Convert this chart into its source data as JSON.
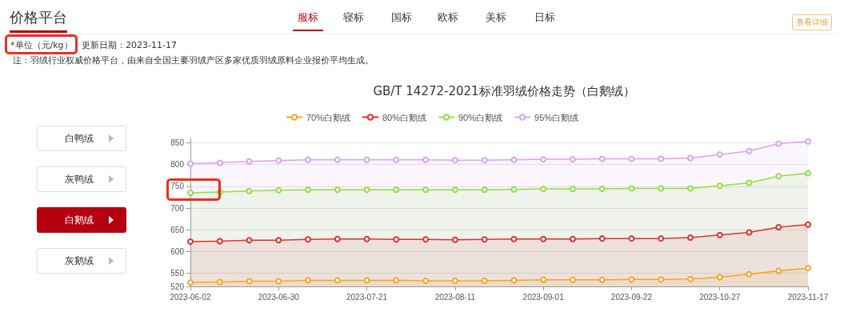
{
  "chart_data": {
    "type": "area",
    "title": "GB/T 14272-2021标准羽绒价格走势（白鹅绒）",
    "annotations": [
      "价格平台",
      "服标",
      "寝标",
      "国标",
      "欧标",
      "美标",
      "日标",
      "查看详细",
      "*单位（元/kg）",
      "更新日期：2023-11-17",
      "注：羽绒行业权威价格平台，由来自全国主要羽绒产区多家优质羽绒原料企业报价平均生成。",
      "白鸭绒",
      "灰鸭绒",
      "白鹅绒",
      "灰鹅绒"
    ],
    "categories": [
      "2023-06-02",
      null,
      null,
      "2023-06-30",
      null,
      null,
      "2023-07-21",
      null,
      null,
      "2023-08-11",
      null,
      null,
      "2023-09-01",
      null,
      null,
      "2023-09-22",
      null,
      null,
      "2023-10-27",
      null,
      null,
      "2023-11-17"
    ],
    "series": [
      {
        "name": "70%白鹅绒",
        "color": "#f5a623",
        "values": [
          529,
          530,
          532,
          532,
          534,
          534,
          534,
          534,
          533,
          533,
          533,
          534,
          535,
          535,
          535,
          536,
          536,
          537,
          541,
          548,
          556,
          562
        ]
      },
      {
        "name": "80%白鹅绒",
        "color": "#e0312d",
        "values": [
          623,
          624,
          626,
          626,
          628,
          629,
          629,
          628,
          628,
          627,
          628,
          629,
          629,
          629,
          630,
          630,
          630,
          632,
          638,
          644,
          656,
          662
        ]
      },
      {
        "name": "90%白鹅绒",
        "color": "#8ee03c",
        "values": [
          735,
          737,
          739,
          741,
          742,
          742,
          742,
          742,
          742,
          742,
          742,
          743,
          744,
          744,
          744,
          745,
          745,
          745,
          751,
          758,
          773,
          780
        ]
      },
      {
        "name": "95%白鹅绒",
        "color": "#dba2f2",
        "values": [
          802,
          804,
          807,
          809,
          811,
          811,
          811,
          811,
          811,
          810,
          810,
          811,
          812,
          812,
          813,
          813,
          813,
          815,
          823,
          831,
          848,
          853
        ]
      }
    ],
    "ylim": [
      520,
      860
    ],
    "yticks": [
      520,
      550,
      600,
      650,
      700,
      750,
      800,
      850
    ],
    "grid": "y",
    "legend": "top",
    "marker": "circle",
    "line_style": "solid"
  }
}
